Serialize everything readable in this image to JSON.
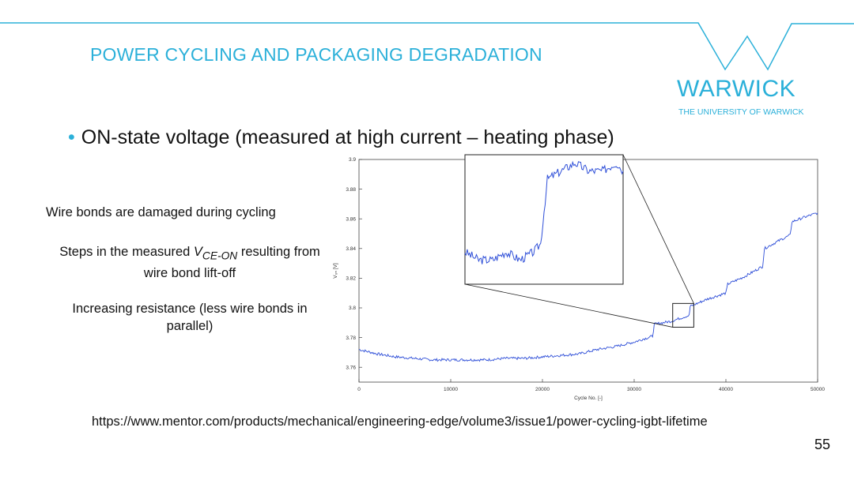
{
  "slide": {
    "title": "POWER CYCLING AND PACKAGING DEGRADATION",
    "logo_name": "WARWICK",
    "logo_subtitle": "THE UNIVERSITY OF WARWICK",
    "bullet": "ON-state voltage (measured at high current – heating phase)",
    "note1": "Wire bonds are damaged during cycling",
    "note2_prefix": "Steps in the measured ",
    "note2_symbol": "V",
    "note2_subscript": "CE-ON",
    "note2_suffix": " resulting from wire bond lift-off",
    "note3": "Increasing resistance (less wire bonds in parallel)",
    "url": "https://www.mentor.com/products/mechanical/engineering-edge/volume3/issue1/power-cycling-igbt-lifetime",
    "page_number": "55",
    "accent_color": "#2bb0d9"
  },
  "chart_data": {
    "type": "line",
    "xlabel": "Cycle No. [-]",
    "ylabel": "V₀ₙ [V]",
    "xlim": [
      0,
      50000
    ],
    "ylim": [
      3.75,
      3.9
    ],
    "x_ticks": [
      0,
      10000,
      20000,
      30000,
      40000,
      50000
    ],
    "y_ticks": [
      3.76,
      3.78,
      3.8,
      3.82,
      3.84,
      3.86,
      3.88,
      3.9
    ],
    "grid": false,
    "series": [
      {
        "color": "#2f4fd8",
        "x": [
          0,
          2000,
          4000,
          6000,
          8000,
          10000,
          12000,
          14000,
          16000,
          18000,
          20000,
          22000,
          24000,
          26000,
          28000,
          30000,
          32000,
          32200,
          34000,
          35000,
          36000,
          36100,
          38000,
          40000,
          40200,
          42000,
          44000,
          44200,
          46000,
          47000,
          47200,
          48500,
          50000
        ],
        "y": [
          3.772,
          3.769,
          3.767,
          3.766,
          3.765,
          3.765,
          3.765,
          3.765,
          3.766,
          3.766,
          3.767,
          3.768,
          3.769,
          3.772,
          3.774,
          3.777,
          3.781,
          3.789,
          3.791,
          3.793,
          3.795,
          3.801,
          3.806,
          3.81,
          3.816,
          3.821,
          3.828,
          3.84,
          3.846,
          3.849,
          3.858,
          3.861,
          3.864
        ]
      }
    ],
    "zoom_region": {
      "x": [
        34200,
        36500
      ],
      "y": [
        3.787,
        3.803
      ]
    },
    "inset": {
      "series": {
        "x": [
          34200,
          34400,
          34600,
          34800,
          35000,
          35200,
          35300,
          35400,
          35600,
          35800,
          36000,
          36200,
          36400,
          36500
        ],
        "y": [
          3.791,
          3.79,
          3.79,
          3.791,
          3.79,
          3.791,
          3.792,
          3.8,
          3.801,
          3.802,
          3.801,
          3.801,
          3.802,
          3.801
        ]
      }
    }
  }
}
